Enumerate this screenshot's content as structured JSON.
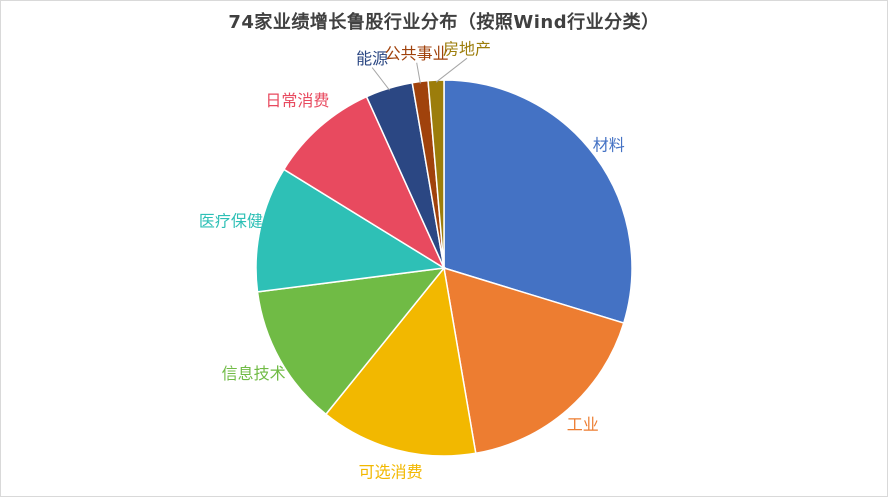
{
  "chart_data": {
    "type": "pie",
    "title": "74家业绩增长鲁股行业分布（按照Wind行业分类）",
    "slices": [
      {
        "label": "材料",
        "value": 22,
        "color": "#4472C4"
      },
      {
        "label": "工业",
        "value": 13,
        "color": "#ED7D31"
      },
      {
        "label": "可选消费",
        "value": 10,
        "color": "#F2B800"
      },
      {
        "label": "信息技术",
        "value": 9,
        "color": "#70BB45"
      },
      {
        "label": "医疗保健",
        "value": 8,
        "color": "#2EC0B6"
      },
      {
        "label": "日常消费",
        "value": 7,
        "color": "#E84A5F"
      },
      {
        "label": "能源",
        "value": 3,
        "color": "#2B4783"
      },
      {
        "label": "公共事业",
        "value": 1,
        "color": "#A0420C"
      },
      {
        "label": "房地产",
        "value": 1,
        "color": "#9C7D0B"
      }
    ],
    "start_angle_deg": 0,
    "direction": "clockwise",
    "legend": "none"
  }
}
